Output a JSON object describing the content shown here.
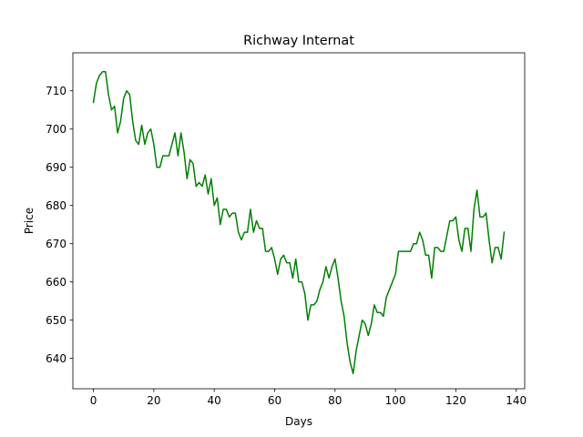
{
  "chart_data": {
    "type": "line",
    "title": "Richway Internat",
    "xlabel": "Days",
    "ylabel": "Price",
    "xlim": [
      -6.8,
      142.8
    ],
    "ylim": [
      632.05,
      719.95
    ],
    "xticks": [
      0,
      20,
      40,
      60,
      80,
      100,
      120,
      140
    ],
    "yticks": [
      640,
      650,
      660,
      670,
      680,
      690,
      700,
      710
    ],
    "grid": false,
    "legend": "none",
    "series": [
      {
        "color": "#008000",
        "x": [
          0,
          1,
          2,
          3,
          4,
          5,
          6,
          7,
          8,
          9,
          10,
          11,
          12,
          13,
          14,
          15,
          16,
          17,
          18,
          19,
          20,
          21,
          22,
          23,
          24,
          25,
          26,
          27,
          28,
          29,
          30,
          31,
          32,
          33,
          34,
          35,
          36,
          37,
          38,
          39,
          40,
          41,
          42,
          43,
          44,
          45,
          46,
          47,
          48,
          49,
          50,
          51,
          52,
          53,
          54,
          55,
          56,
          57,
          58,
          59,
          60,
          61,
          62,
          63,
          64,
          65,
          66,
          67,
          68,
          69,
          70,
          71,
          72,
          73,
          74,
          75,
          76,
          77,
          78,
          79,
          80,
          81,
          82,
          83,
          84,
          85,
          86,
          87,
          88,
          89,
          90,
          91,
          92,
          93,
          94,
          95,
          96,
          97,
          98,
          99,
          100,
          101,
          102,
          103,
          104,
          105,
          106,
          107,
          108,
          109,
          110,
          111,
          112,
          113,
          114,
          115,
          116,
          117,
          118,
          119,
          120,
          121,
          122,
          123,
          124,
          125,
          126,
          127,
          128,
          129,
          130,
          131,
          132,
          133,
          134,
          135,
          136
        ],
        "y": [
          707,
          712,
          714,
          715,
          715,
          709,
          705,
          706,
          699,
          702,
          708,
          710,
          709,
          702,
          697,
          696,
          701,
          696,
          699,
          700,
          696,
          690,
          690,
          693,
          693,
          693,
          696,
          699,
          693,
          699,
          694,
          687,
          692,
          691,
          685,
          686,
          685,
          688,
          683,
          687,
          680,
          682,
          675,
          679,
          679,
          677,
          678,
          678,
          673,
          671,
          673,
          673,
          679,
          673,
          676,
          674,
          674,
          668,
          668,
          669,
          666,
          662,
          666,
          667,
          665,
          665,
          661,
          666,
          660,
          660,
          657,
          650,
          654,
          654,
          655,
          658,
          660,
          664,
          661,
          664,
          666,
          661,
          655,
          651,
          644,
          639,
          636,
          642,
          646,
          650,
          649,
          646,
          649,
          654,
          652,
          652,
          651,
          656,
          658,
          660,
          662,
          668,
          668,
          668,
          668,
          668,
          670,
          670,
          673,
          671,
          667,
          667,
          661,
          669,
          669,
          668,
          668,
          672,
          676,
          676,
          677,
          671,
          668,
          674,
          674,
          668,
          679,
          684,
          677,
          677,
          678,
          671,
          665,
          669,
          669,
          666,
          673
        ]
      }
    ]
  }
}
